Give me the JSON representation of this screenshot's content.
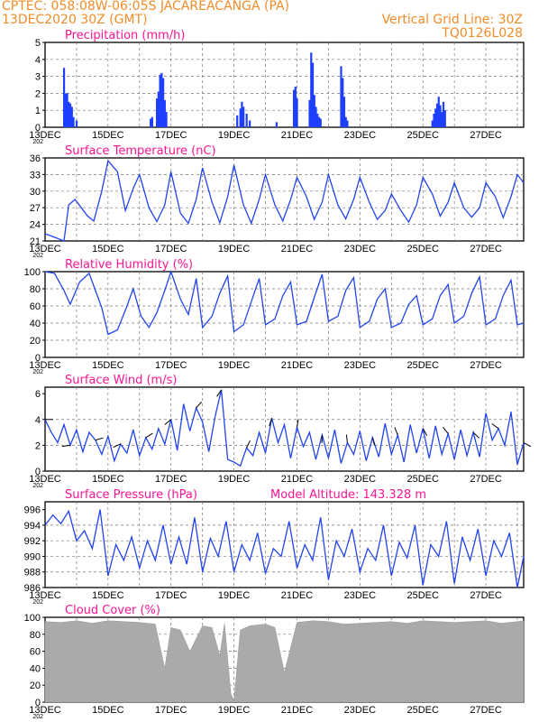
{
  "header": {
    "station_line": "CPTEC:   058:08W-06:05S  JACAREACANGA (PA)",
    "date_line": "13DEC2020 30Z (GMT)",
    "grid_note": "Vertical Grid Line: 30Z",
    "code": "TQ0126L028"
  },
  "colors": {
    "line": "#2244ee",
    "bar": "#1f3fff",
    "cloud": "#aaaaaa",
    "header": "#f28c28",
    "title": "#ff1493"
  },
  "x_axis": {
    "start_day": 13,
    "end_day": 28.2,
    "labels": [
      "13DEC",
      "15DEC",
      "17DEC",
      "19DEC",
      "21DEC",
      "23DEC",
      "25DEC",
      "27DEC"
    ],
    "label_days": [
      13,
      15,
      17,
      19,
      21,
      23,
      25,
      27
    ],
    "year_stub": "202"
  },
  "chart_data": [
    {
      "type": "bar",
      "title": "Precipitation (mm/h)",
      "ylim": [
        0,
        5
      ],
      "yticks": [
        0,
        1,
        2,
        3,
        4,
        5
      ],
      "x": [
        13.6,
        13.65,
        13.7,
        13.75,
        13.8,
        13.85,
        13.9,
        14.0,
        16.35,
        16.4,
        16.55,
        16.6,
        16.65,
        16.7,
        16.75,
        16.8,
        16.85,
        19.1,
        19.2,
        19.25,
        19.3,
        19.4,
        19.5,
        20.35,
        20.9,
        20.95,
        21.0,
        21.4,
        21.45,
        21.5,
        21.55,
        21.6,
        21.65,
        21.7,
        21.75,
        22.4,
        22.45,
        22.5,
        22.55,
        22.6,
        25.3,
        25.35,
        25.4,
        25.45,
        25.5,
        25.55,
        25.6,
        25.65,
        25.7
      ],
      "values": [
        3.5,
        2.0,
        2.0,
        1.5,
        1.4,
        1.2,
        0.6,
        0.4,
        0.5,
        0.6,
        1.7,
        2.1,
        3.1,
        3.2,
        2.9,
        1.6,
        0.9,
        0.7,
        1.1,
        1.5,
        1.2,
        0.8,
        0.4,
        0.3,
        2.2,
        2.4,
        1.7,
        1.6,
        4.4,
        3.8,
        1.9,
        1.2,
        0.8,
        0.6,
        0.5,
        3.6,
        2.9,
        1.8,
        0.6,
        0.4,
        0.4,
        0.8,
        1.1,
        1.4,
        1.8,
        1.3,
        0.9,
        1.5,
        1.0
      ]
    },
    {
      "type": "line",
      "title": "Surface Temperature (nC)",
      "ylim": [
        21,
        36
      ],
      "yticks": [
        21,
        24,
        27,
        30,
        33,
        36
      ],
      "x": [
        13.0,
        13.25,
        13.6,
        13.75,
        13.95,
        14.15,
        14.35,
        14.55,
        14.8,
        15.0,
        15.3,
        15.55,
        15.8,
        16.0,
        16.3,
        16.55,
        16.8,
        17.0,
        17.3,
        17.55,
        17.8,
        18.0,
        18.3,
        18.55,
        18.8,
        19.0,
        19.3,
        19.55,
        19.8,
        20.0,
        20.3,
        20.55,
        20.8,
        21.0,
        21.3,
        21.55,
        21.8,
        22.0,
        22.3,
        22.55,
        22.8,
        23.0,
        23.3,
        23.55,
        23.8,
        24.0,
        24.3,
        24.55,
        24.8,
        25.0,
        25.3,
        25.55,
        25.8,
        26.0,
        26.3,
        26.55,
        26.8,
        27.0,
        27.3,
        27.55,
        27.8,
        28.0,
        28.2
      ],
      "values": [
        22.3,
        21.8,
        21.0,
        27.5,
        28.5,
        27.0,
        25.5,
        24.6,
        30.0,
        35.5,
        33.5,
        26.5,
        30.5,
        33.0,
        27.0,
        24.5,
        27.5,
        33.5,
        26.0,
        24.2,
        28.5,
        34.2,
        28.0,
        24.3,
        29.0,
        34.7,
        27.5,
        24.2,
        28.5,
        33.0,
        27.5,
        24.6,
        28.5,
        32.5,
        29.0,
        24.9,
        28.0,
        33.0,
        27.5,
        25.0,
        28.5,
        32.5,
        28.0,
        24.9,
        26.5,
        29.5,
        26.5,
        24.4,
        27.5,
        32.5,
        29.5,
        25.5,
        28.0,
        31.5,
        27.0,
        25.3,
        27.0,
        31.5,
        29.0,
        25.2,
        29.0,
        33.0,
        31.5
      ]
    },
    {
      "type": "line",
      "title": "Relative Humidity (%)",
      "ylim": [
        0,
        100
      ],
      "yticks": [
        0,
        20,
        40,
        60,
        80,
        100
      ],
      "x": [
        13.0,
        13.3,
        13.6,
        13.8,
        14.1,
        14.4,
        14.8,
        15.0,
        15.3,
        15.55,
        15.8,
        16.05,
        16.3,
        16.55,
        16.8,
        17.0,
        17.3,
        17.55,
        17.8,
        18.0,
        18.3,
        18.55,
        18.8,
        19.0,
        19.3,
        19.55,
        19.8,
        20.0,
        20.3,
        20.55,
        20.8,
        21.0,
        21.3,
        21.55,
        21.8,
        22.0,
        22.3,
        22.55,
        22.8,
        23.0,
        23.3,
        23.55,
        23.8,
        24.0,
        24.3,
        24.55,
        24.8,
        25.0,
        25.3,
        25.55,
        25.8,
        26.0,
        26.3,
        26.55,
        26.8,
        27.0,
        27.3,
        27.55,
        27.8,
        28.0,
        28.2
      ],
      "values": [
        100,
        98,
        78,
        62,
        88,
        98,
        58,
        27,
        32,
        55,
        80,
        48,
        35,
        52,
        78,
        100,
        68,
        50,
        92,
        35,
        48,
        75,
        95,
        30,
        38,
        65,
        92,
        38,
        45,
        72,
        88,
        38,
        42,
        70,
        97,
        42,
        48,
        78,
        93,
        35,
        42,
        68,
        80,
        35,
        40,
        62,
        72,
        38,
        45,
        72,
        85,
        40,
        48,
        75,
        94,
        38,
        45,
        72,
        90,
        38,
        40
      ]
    },
    {
      "type": "line",
      "title": "Surface Wind (m/s)",
      "ylim": [
        0,
        6.5
      ],
      "yticks": [
        0,
        2,
        4,
        6
      ],
      "x": [
        13.0,
        13.2,
        13.4,
        13.6,
        13.8,
        14.0,
        14.2,
        14.4,
        14.6,
        14.8,
        15.0,
        15.2,
        15.4,
        15.6,
        15.8,
        16.0,
        16.2,
        16.4,
        16.6,
        16.8,
        17.0,
        17.2,
        17.4,
        17.6,
        17.8,
        18.0,
        18.2,
        18.4,
        18.6,
        18.8,
        19.0,
        19.2,
        19.4,
        19.6,
        19.8,
        20.0,
        20.2,
        20.4,
        20.6,
        20.8,
        21.0,
        21.2,
        21.4,
        21.6,
        21.8,
        22.0,
        22.2,
        22.4,
        22.6,
        22.8,
        23.0,
        23.2,
        23.4,
        23.6,
        23.8,
        24.0,
        24.2,
        24.4,
        24.6,
        24.8,
        25.0,
        25.2,
        25.4,
        25.6,
        25.8,
        26.0,
        26.2,
        26.4,
        26.6,
        26.8,
        27.0,
        27.2,
        27.4,
        27.6,
        27.8,
        28.0,
        28.2
      ],
      "values": [
        4.0,
        3.0,
        2.2,
        3.6,
        2.0,
        3.2,
        1.5,
        3.0,
        2.4,
        1.3,
        2.7,
        0.8,
        2.1,
        1.4,
        3.2,
        1.2,
        2.6,
        1.7,
        3.3,
        2.1,
        4.0,
        1.6,
        5.2,
        3.1,
        4.9,
        3.8,
        1.5,
        4.2,
        6.3,
        0.9,
        0.7,
        0.4,
        1.8,
        1.2,
        3.0,
        1.4,
        4.1,
        2.2,
        3.6,
        1.0,
        3.4,
        1.9,
        3.0,
        0.9,
        2.8,
        1.0,
        3.2,
        0.6,
        2.2,
        1.3,
        3.1,
        0.8,
        2.6,
        1.1,
        3.7,
        1.3,
        2.8,
        0.7,
        3.6,
        1.4,
        3.3,
        1.0,
        3.5,
        1.3,
        2.9,
        0.9,
        3.2,
        1.2,
        3.0,
        1.1,
        4.5,
        2.4,
        3.3,
        2.0,
        4.6,
        0.5,
        2.2
      ]
    },
    {
      "type": "line",
      "title": "Surface Pressure (hPa)",
      "subtitle": "Model Altitude: 143.328  m",
      "ylim": [
        986,
        997
      ],
      "yticks": [
        986,
        988,
        990,
        992,
        994,
        996
      ],
      "x": [
        13.0,
        13.25,
        13.5,
        13.75,
        14.0,
        14.25,
        14.5,
        14.75,
        15.0,
        15.25,
        15.5,
        15.75,
        16.0,
        16.25,
        16.5,
        16.75,
        17.0,
        17.25,
        17.5,
        17.75,
        18.0,
        18.25,
        18.5,
        18.75,
        19.0,
        19.25,
        19.5,
        19.75,
        20.0,
        20.25,
        20.5,
        20.75,
        21.0,
        21.25,
        21.5,
        21.75,
        22.0,
        22.25,
        22.5,
        22.75,
        23.0,
        23.25,
        23.5,
        23.75,
        24.0,
        24.25,
        24.5,
        24.75,
        25.0,
        25.25,
        25.5,
        25.75,
        26.0,
        26.25,
        26.5,
        26.75,
        27.0,
        27.25,
        27.5,
        27.75,
        28.0,
        28.2
      ],
      "values": [
        994.0,
        995.3,
        994.2,
        995.8,
        992.0,
        993.3,
        991.0,
        996.0,
        987.5,
        991.5,
        989.5,
        992.5,
        988.5,
        992.0,
        989.5,
        994.0,
        989.0,
        992.5,
        989.0,
        995.0,
        988.0,
        992.3,
        990.0,
        994.5,
        988.0,
        991.5,
        989.5,
        993.0,
        987.8,
        991.0,
        990.0,
        994.5,
        988.5,
        991.5,
        989.5,
        995.0,
        987.0,
        992.0,
        990.0,
        993.5,
        988.0,
        991.0,
        989.5,
        994.0,
        987.5,
        991.8,
        989.8,
        994.0,
        986.3,
        991.5,
        990.0,
        994.5,
        986.5,
        992.5,
        989.5,
        993.5,
        987.5,
        992.0,
        990.0,
        993.0,
        986.0,
        990.0
      ]
    },
    {
      "type": "area",
      "title": "Cloud Cover (%)",
      "ylim": [
        0,
        100
      ],
      "yticks": [
        0,
        20,
        40,
        60,
        80,
        100
      ],
      "x": [
        13.0,
        13.5,
        14.0,
        14.5,
        15.0,
        15.5,
        16.0,
        16.5,
        16.8,
        17.0,
        17.3,
        17.6,
        18.0,
        18.3,
        18.55,
        18.7,
        18.9,
        19.0,
        19.2,
        19.5,
        20.0,
        20.3,
        20.6,
        21.0,
        21.5,
        22.0,
        22.5,
        23.0,
        23.5,
        24.0,
        24.5,
        25.0,
        25.5,
        26.0,
        26.5,
        27.0,
        27.5,
        28.0,
        28.2
      ],
      "values": [
        95,
        94,
        96,
        93,
        96,
        95,
        94,
        92,
        40,
        88,
        85,
        60,
        90,
        88,
        55,
        93,
        10,
        2,
        85,
        90,
        92,
        88,
        35,
        94,
        96,
        95,
        92,
        93,
        94,
        95,
        93,
        96,
        95,
        94,
        95,
        96,
        93,
        95,
        96
      ]
    }
  ]
}
